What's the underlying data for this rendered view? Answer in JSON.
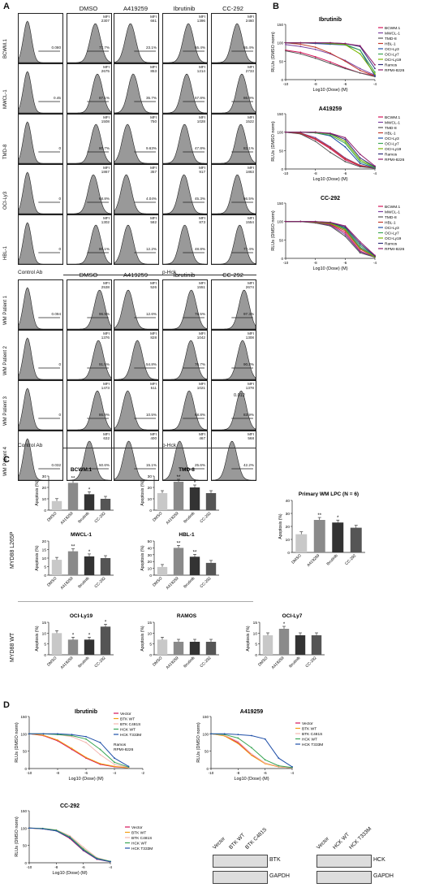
{
  "panelA": {
    "letter": "A",
    "top_columns": [
      "DMSO",
      "A419259",
      "Ibrutinib",
      "CC-292"
    ],
    "bottom_columns": [
      "DMSO",
      "A419259",
      "Ibrutinib",
      "CC-292"
    ],
    "control_label": "Control Ab",
    "phck_label": "p-Hck",
    "top_rows": [
      {
        "label": "BCWM.1",
        "ctrl_pct": "0.080",
        "cells": [
          {
            "mfi": "2307",
            "pct": "77.7%"
          },
          {
            "mfi": "661",
            "pct": "23.1%"
          },
          {
            "mfi": "1396",
            "pct": "65.4%"
          },
          {
            "mfi": "2460",
            "pct": "65.4%"
          }
        ]
      },
      {
        "label": "MWCL-1",
        "ctrl_pct": "0.45",
        "cells": [
          {
            "mfi": "2675",
            "pct": "87.1%"
          },
          {
            "mfi": "853",
            "pct": "35.7%"
          },
          {
            "mfi": "1214",
            "pct": "57.8%"
          },
          {
            "mfi": "2733",
            "pct": "86.9%"
          }
        ]
      },
      {
        "label": "TMD-8",
        "ctrl_pct": "0",
        "cells": [
          {
            "mfi": "1508",
            "pct": "80.7%"
          },
          {
            "mfi": "750",
            "pct": "9.63%"
          },
          {
            "mfi": "1028",
            "pct": "47.8%"
          },
          {
            "mfi": "1522",
            "pct": "82.1%"
          }
        ]
      },
      {
        "label": "OCI-Ly3",
        "ctrl_pct": "0",
        "cells": [
          {
            "mfi": "1867",
            "pct": "68.8%"
          },
          {
            "mfi": "357",
            "pct": "4.04%"
          },
          {
            "mfi": "917",
            "pct": "45.3%"
          },
          {
            "mfi": "1863",
            "pct": "66.5%"
          }
        ]
      },
      {
        "label": "HBL-1",
        "ctrl_pct": "0",
        "cells": [
          {
            "mfi": "1302",
            "pct": "80.1%"
          },
          {
            "mfi": "582",
            "pct": "12.2%"
          },
          {
            "mfi": "873",
            "pct": "48.8%"
          },
          {
            "mfi": "1554",
            "pct": "77.4%"
          }
        ]
      }
    ],
    "bottom_rows": [
      {
        "label": "WM Patient 1",
        "ctrl_pct": "0.094",
        "cells": [
          {
            "mfi": "2538",
            "pct": "96.9%"
          },
          {
            "mfi": "526",
            "pct": "12.6%"
          },
          {
            "mfi": "1551",
            "pct": "78.5%"
          },
          {
            "mfi": "2674",
            "pct": "97.3%"
          }
        ]
      },
      {
        "label": "WM Patient 2",
        "ctrl_pct": "0",
        "cells": [
          {
            "mfi": "1376",
            "pct": "91.5%"
          },
          {
            "mfi": "828",
            "pct": "54.8%"
          },
          {
            "mfi": "1042",
            "pct": "76.7%"
          },
          {
            "mfi": "1308",
            "pct": "90.3%"
          }
        ]
      },
      {
        "label": "WM Patient 3",
        "ctrl_pct": "0",
        "cells": [
          {
            "mfi": "1473",
            "pct": "86.9%"
          },
          {
            "mfi": "511",
            "pct": "10.5%"
          },
          {
            "mfi": "1021",
            "pct": "68.8%"
          },
          {
            "mfi": "1378",
            "pct": "83.9%"
          }
        ]
      },
      {
        "label": "WM Patient 4",
        "ctrl_pct": "0.032",
        "cells": [
          {
            "mfi": "632",
            "pct": "50.6%"
          },
          {
            "mfi": "400",
            "pct": "15.1%"
          },
          {
            "mfi": "467",
            "pct": "25.6%"
          },
          {
            "mfi": "568",
            "pct": "42.2%"
          }
        ]
      }
    ],
    "mfi_label": "MFI",
    "extra_value": "0.012"
  },
  "panelB": {
    "letter": "B",
    "ylabel": "RLUs (DMSO norm)",
    "xlabel": "Log10 (Dose) (M)",
    "legend": [
      "BCWM.1",
      "MWCL-1",
      "TMD-8",
      "HBL-1",
      "OCI-Ly3",
      "OCI-Ly7",
      "OCI-Ly19",
      "Ramos",
      "RPMI-8226"
    ],
    "legend_colors": [
      "#d4145a",
      "#7b3fa0",
      "#555555",
      "#c0392b",
      "#1f4fa8",
      "#3aa655",
      "#7ab800",
      "#2e2e7a",
      "#8e1b6b"
    ],
    "charts": [
      {
        "title": "Ibrutinib"
      },
      {
        "title": "A419259"
      },
      {
        "title": "CC-292"
      }
    ]
  },
  "panelC": {
    "letter": "C",
    "ylabel": "Apoptosis (%)",
    "l265p_label": "MYD88 L265P",
    "wt_label": "MYD88 WT",
    "categories": [
      "DMSO",
      "A419259",
      "Ibrutinib",
      "CC-292"
    ],
    "bar_colors": [
      "#c8c8c8",
      "#8a8a8a",
      "#333333",
      "#555555"
    ]
  },
  "panelD": {
    "letter": "D",
    "ylabel": "RLUs (DMSO norm)",
    "xlabel": "Log10 (Dose) (M)",
    "legend": [
      "Vector",
      "BTK WT",
      "BTK C481S",
      "HCK WT",
      "HCK T333M"
    ],
    "legend_colors": [
      "#d4145a",
      "#f39c12",
      "#f5b7b1",
      "#3aa655",
      "#1f4fa8"
    ],
    "inset_legend": [
      "Ramos",
      "RPMI-8226"
    ],
    "blot_btk_lanes": [
      "Vector",
      "BTK WT",
      "BTK C481S"
    ],
    "blot_hck_lanes": [
      "Vector",
      "HCK WT",
      "HCK T333M"
    ],
    "blot_btk_label": "BTK",
    "blot_hck_label": "HCK",
    "blot_gapdh_label": "GAPDH"
  },
  "chart_data": [
    {
      "type": "line",
      "title": "Ibrutinib",
      "xlabel": "Log10 (Dose) (M)",
      "ylabel": "RLUs (DMSO norm)",
      "xlim": [
        -10,
        -4
      ],
      "ylim": [
        0,
        150
      ],
      "x": [
        -10,
        -9,
        -8,
        -7,
        -6,
        -5,
        -4
      ],
      "series": [
        {
          "name": "BCWM.1",
          "values": [
            80,
            74,
            62,
            48,
            32,
            18,
            10
          ]
        },
        {
          "name": "MWCL-1",
          "values": [
            95,
            90,
            82,
            70,
            52,
            30,
            12
          ]
        },
        {
          "name": "TMD-8",
          "values": [
            78,
            70,
            58,
            44,
            30,
            18,
            8
          ]
        },
        {
          "name": "HBL-1",
          "values": [
            100,
            96,
            88,
            72,
            50,
            25,
            10
          ]
        },
        {
          "name": "OCI-Ly3",
          "values": [
            100,
            100,
            98,
            96,
            94,
            80,
            10
          ]
        },
        {
          "name": "OCI-Ly7",
          "values": [
            100,
            100,
            100,
            98,
            96,
            80,
            20
          ]
        },
        {
          "name": "OCI-Ly19",
          "values": [
            100,
            100,
            100,
            98,
            95,
            70,
            15
          ]
        },
        {
          "name": "Ramos",
          "values": [
            100,
            100,
            100,
            100,
            98,
            90,
            30
          ]
        },
        {
          "name": "RPMI-8226",
          "values": [
            100,
            100,
            100,
            100,
            98,
            92,
            40
          ]
        }
      ]
    },
    {
      "type": "line",
      "title": "A419259",
      "xlabel": "Log10 (Dose) (M)",
      "ylabel": "RLUs (DMSO norm)",
      "xlim": [
        -10,
        -4
      ],
      "ylim": [
        0,
        150
      ],
      "x": [
        -10,
        -9,
        -8,
        -7,
        -6,
        -5,
        -4
      ],
      "series": [
        {
          "name": "BCWM.1",
          "values": [
            100,
            96,
            80,
            55,
            25,
            8,
            2
          ]
        },
        {
          "name": "MWCL-1",
          "values": [
            100,
            98,
            85,
            60,
            30,
            10,
            2
          ]
        },
        {
          "name": "TMD-8",
          "values": [
            100,
            95,
            75,
            45,
            20,
            6,
            2
          ]
        },
        {
          "name": "HBL-1",
          "values": [
            100,
            97,
            82,
            58,
            28,
            10,
            3
          ]
        },
        {
          "name": "OCI-Ly3",
          "values": [
            100,
            100,
            98,
            90,
            60,
            15,
            3
          ]
        },
        {
          "name": "OCI-Ly7",
          "values": [
            100,
            100,
            98,
            92,
            70,
            20,
            4
          ]
        },
        {
          "name": "OCI-Ly19",
          "values": [
            100,
            100,
            99,
            95,
            75,
            25,
            5
          ]
        },
        {
          "name": "Ramos",
          "values": [
            100,
            100,
            100,
            96,
            80,
            30,
            6
          ]
        },
        {
          "name": "RPMI-8226",
          "values": [
            100,
            100,
            100,
            97,
            85,
            40,
            8
          ]
        }
      ]
    },
    {
      "type": "line",
      "title": "CC-292",
      "xlabel": "Log10 (Dose) (M)",
      "ylabel": "RLUs (DMSO norm)",
      "xlim": [
        -10,
        -4
      ],
      "ylim": [
        0,
        150
      ],
      "x": [
        -10,
        -9,
        -8,
        -7,
        -6,
        -5,
        -4
      ],
      "series": [
        {
          "name": "BCWM.1",
          "values": [
            100,
            100,
            98,
            92,
            70,
            20,
            3
          ]
        },
        {
          "name": "MWCL-1",
          "values": [
            100,
            100,
            97,
            90,
            65,
            18,
            3
          ]
        },
        {
          "name": "TMD-8",
          "values": [
            100,
            100,
            96,
            88,
            60,
            15,
            3
          ]
        },
        {
          "name": "HBL-1",
          "values": [
            100,
            100,
            98,
            93,
            75,
            25,
            4
          ]
        },
        {
          "name": "OCI-Ly3",
          "values": [
            100,
            100,
            99,
            95,
            80,
            30,
            5
          ]
        },
        {
          "name": "OCI-Ly7",
          "values": [
            100,
            100,
            99,
            96,
            82,
            35,
            5
          ]
        },
        {
          "name": "OCI-Ly19",
          "values": [
            100,
            100,
            99,
            95,
            78,
            28,
            4
          ]
        },
        {
          "name": "Ramos",
          "values": [
            100,
            100,
            100,
            97,
            85,
            40,
            6
          ]
        },
        {
          "name": "RPMI-8226",
          "values": [
            100,
            100,
            100,
            98,
            88,
            45,
            8
          ]
        }
      ]
    },
    {
      "type": "bar",
      "title": "BCWM.1",
      "categories": [
        "DMSO",
        "A419259",
        "Ibrutinib",
        "CC-292"
      ],
      "values": [
        8,
        24,
        14,
        10
      ],
      "ylim": [
        0,
        30
      ],
      "yticks": [
        0,
        10,
        20,
        30
      ],
      "sig": [
        "",
        "**",
        "*",
        ""
      ]
    },
    {
      "type": "bar",
      "title": "TMD-8",
      "categories": [
        "DMSO",
        "A419259",
        "Ibrutinib",
        "CC-292"
      ],
      "values": [
        15,
        25,
        20,
        15
      ],
      "ylim": [
        0,
        30
      ],
      "yticks": [
        0,
        10,
        20,
        30
      ],
      "sig": [
        "",
        "**",
        "*",
        ""
      ]
    },
    {
      "type": "bar",
      "title": "Primary WM LPC (N = 6)",
      "categories": [
        "DMSO",
        "A419259",
        "Ibrutinib",
        "CC-292"
      ],
      "values": [
        14,
        25,
        23,
        19
      ],
      "ylim": [
        0,
        40
      ],
      "yticks": [
        0,
        10,
        20,
        30,
        40
      ],
      "sig": [
        "",
        "**",
        "*",
        ""
      ]
    },
    {
      "type": "bar",
      "title": "MWCL-1",
      "categories": [
        "DMSO",
        "A419259",
        "Ibrutinib",
        "CC-292"
      ],
      "values": [
        9,
        14,
        11,
        10
      ],
      "ylim": [
        0,
        20
      ],
      "yticks": [
        0,
        5,
        10,
        15,
        20
      ],
      "sig": [
        "",
        "**",
        "*",
        ""
      ]
    },
    {
      "type": "bar",
      "title": "HBL-1",
      "categories": [
        "DMSO",
        "A419259",
        "Ibrutinib",
        "CC-292"
      ],
      "values": [
        12,
        40,
        27,
        18
      ],
      "ylim": [
        0,
        50
      ],
      "yticks": [
        0,
        10,
        20,
        30,
        40,
        50
      ],
      "sig": [
        "",
        "**",
        "**",
        ""
      ]
    },
    {
      "type": "bar",
      "title": "OCI-Ly19",
      "categories": [
        "DMSO",
        "A419259",
        "Ibrutinib",
        "CC-292"
      ],
      "values": [
        10,
        7,
        7,
        13
      ],
      "ylim": [
        0,
        15
      ],
      "yticks": [
        0,
        5,
        10,
        15
      ],
      "sig": [
        "",
        "*",
        "*",
        "*"
      ]
    },
    {
      "type": "bar",
      "title": "RAMOS",
      "categories": [
        "DMSO",
        "A419259",
        "Ibrutinib",
        "CC-292"
      ],
      "values": [
        7,
        6,
        6,
        6
      ],
      "ylim": [
        0,
        15
      ],
      "yticks": [
        0,
        5,
        10,
        15
      ],
      "sig": [
        "",
        "",
        "",
        ""
      ]
    },
    {
      "type": "bar",
      "title": "OCI-Ly7",
      "categories": [
        "DMSO",
        "A419259",
        "Ibrutinib",
        "CC-292"
      ],
      "values": [
        9,
        12,
        9,
        9
      ],
      "ylim": [
        0,
        15
      ],
      "yticks": [
        0,
        5,
        10,
        15
      ],
      "sig": [
        "",
        "*",
        "",
        ""
      ]
    },
    {
      "type": "line",
      "title": "Ibrutinib",
      "xlabel": "Log10 (Dose) (M)",
      "ylabel": "RLUs (DMSO norm)",
      "xlim": [
        -10,
        -2
      ],
      "ylim": [
        0,
        150
      ],
      "x": [
        -10,
        -9,
        -8,
        -7,
        -6,
        -5,
        -4,
        -3
      ],
      "series": [
        {
          "name": "Vector",
          "values": [
            100,
            95,
            80,
            55,
            30,
            12,
            5,
            2
          ]
        },
        {
          "name": "BTK WT",
          "values": [
            100,
            96,
            82,
            58,
            32,
            14,
            6,
            2
          ]
        },
        {
          "name": "BTK C481S",
          "values": [
            100,
            100,
            98,
            92,
            75,
            40,
            12,
            3
          ]
        },
        {
          "name": "HCK WT",
          "values": [
            100,
            100,
            98,
            95,
            85,
            55,
            18,
            4
          ]
        },
        {
          "name": "HCK T333M",
          "values": [
            100,
            100,
            100,
            98,
            92,
            75,
            30,
            6
          ]
        }
      ]
    },
    {
      "type": "line",
      "title": "A419259",
      "xlabel": "Log10 (Dose) (M)",
      "ylabel": "RLUs (DMSO norm)",
      "xlim": [
        -10,
        -4
      ],
      "ylim": [
        0,
        150
      ],
      "x": [
        -10,
        -9,
        -8,
        -7,
        -6,
        -5,
        -4
      ],
      "series": [
        {
          "name": "Vector",
          "values": [
            100,
            95,
            75,
            40,
            15,
            5,
            2
          ]
        },
        {
          "name": "BTK WT",
          "values": [
            100,
            94,
            72,
            38,
            14,
            5,
            2
          ]
        },
        {
          "name": "BTK C481S",
          "values": [
            100,
            96,
            78,
            42,
            16,
            6,
            2
          ]
        },
        {
          "name": "HCK WT",
          "values": [
            100,
            98,
            88,
            60,
            25,
            8,
            3
          ]
        },
        {
          "name": "HCK T333M",
          "values": [
            100,
            100,
            98,
            95,
            85,
            30,
            5
          ]
        }
      ]
    },
    {
      "type": "line",
      "title": "CC-292",
      "xlabel": "Log10 (Dose) (M)",
      "ylabel": "RLUs (DMSO norm)",
      "xlim": [
        -10,
        -4
      ],
      "ylim": [
        0,
        150
      ],
      "x": [
        -10,
        -9,
        -8,
        -7,
        -6,
        -5,
        -4
      ],
      "series": [
        {
          "name": "Vector",
          "values": [
            100,
            98,
            92,
            70,
            35,
            10,
            3
          ]
        },
        {
          "name": "BTK WT",
          "values": [
            100,
            98,
            93,
            72,
            38,
            12,
            3
          ]
        },
        {
          "name": "BTK C481S",
          "values": [
            100,
            99,
            95,
            78,
            45,
            15,
            4
          ]
        },
        {
          "name": "HCK WT",
          "values": [
            100,
            99,
            94,
            75,
            40,
            13,
            4
          ]
        },
        {
          "name": "HCK T333M",
          "values": [
            100,
            98,
            92,
            72,
            36,
            11,
            3
          ]
        }
      ]
    }
  ]
}
